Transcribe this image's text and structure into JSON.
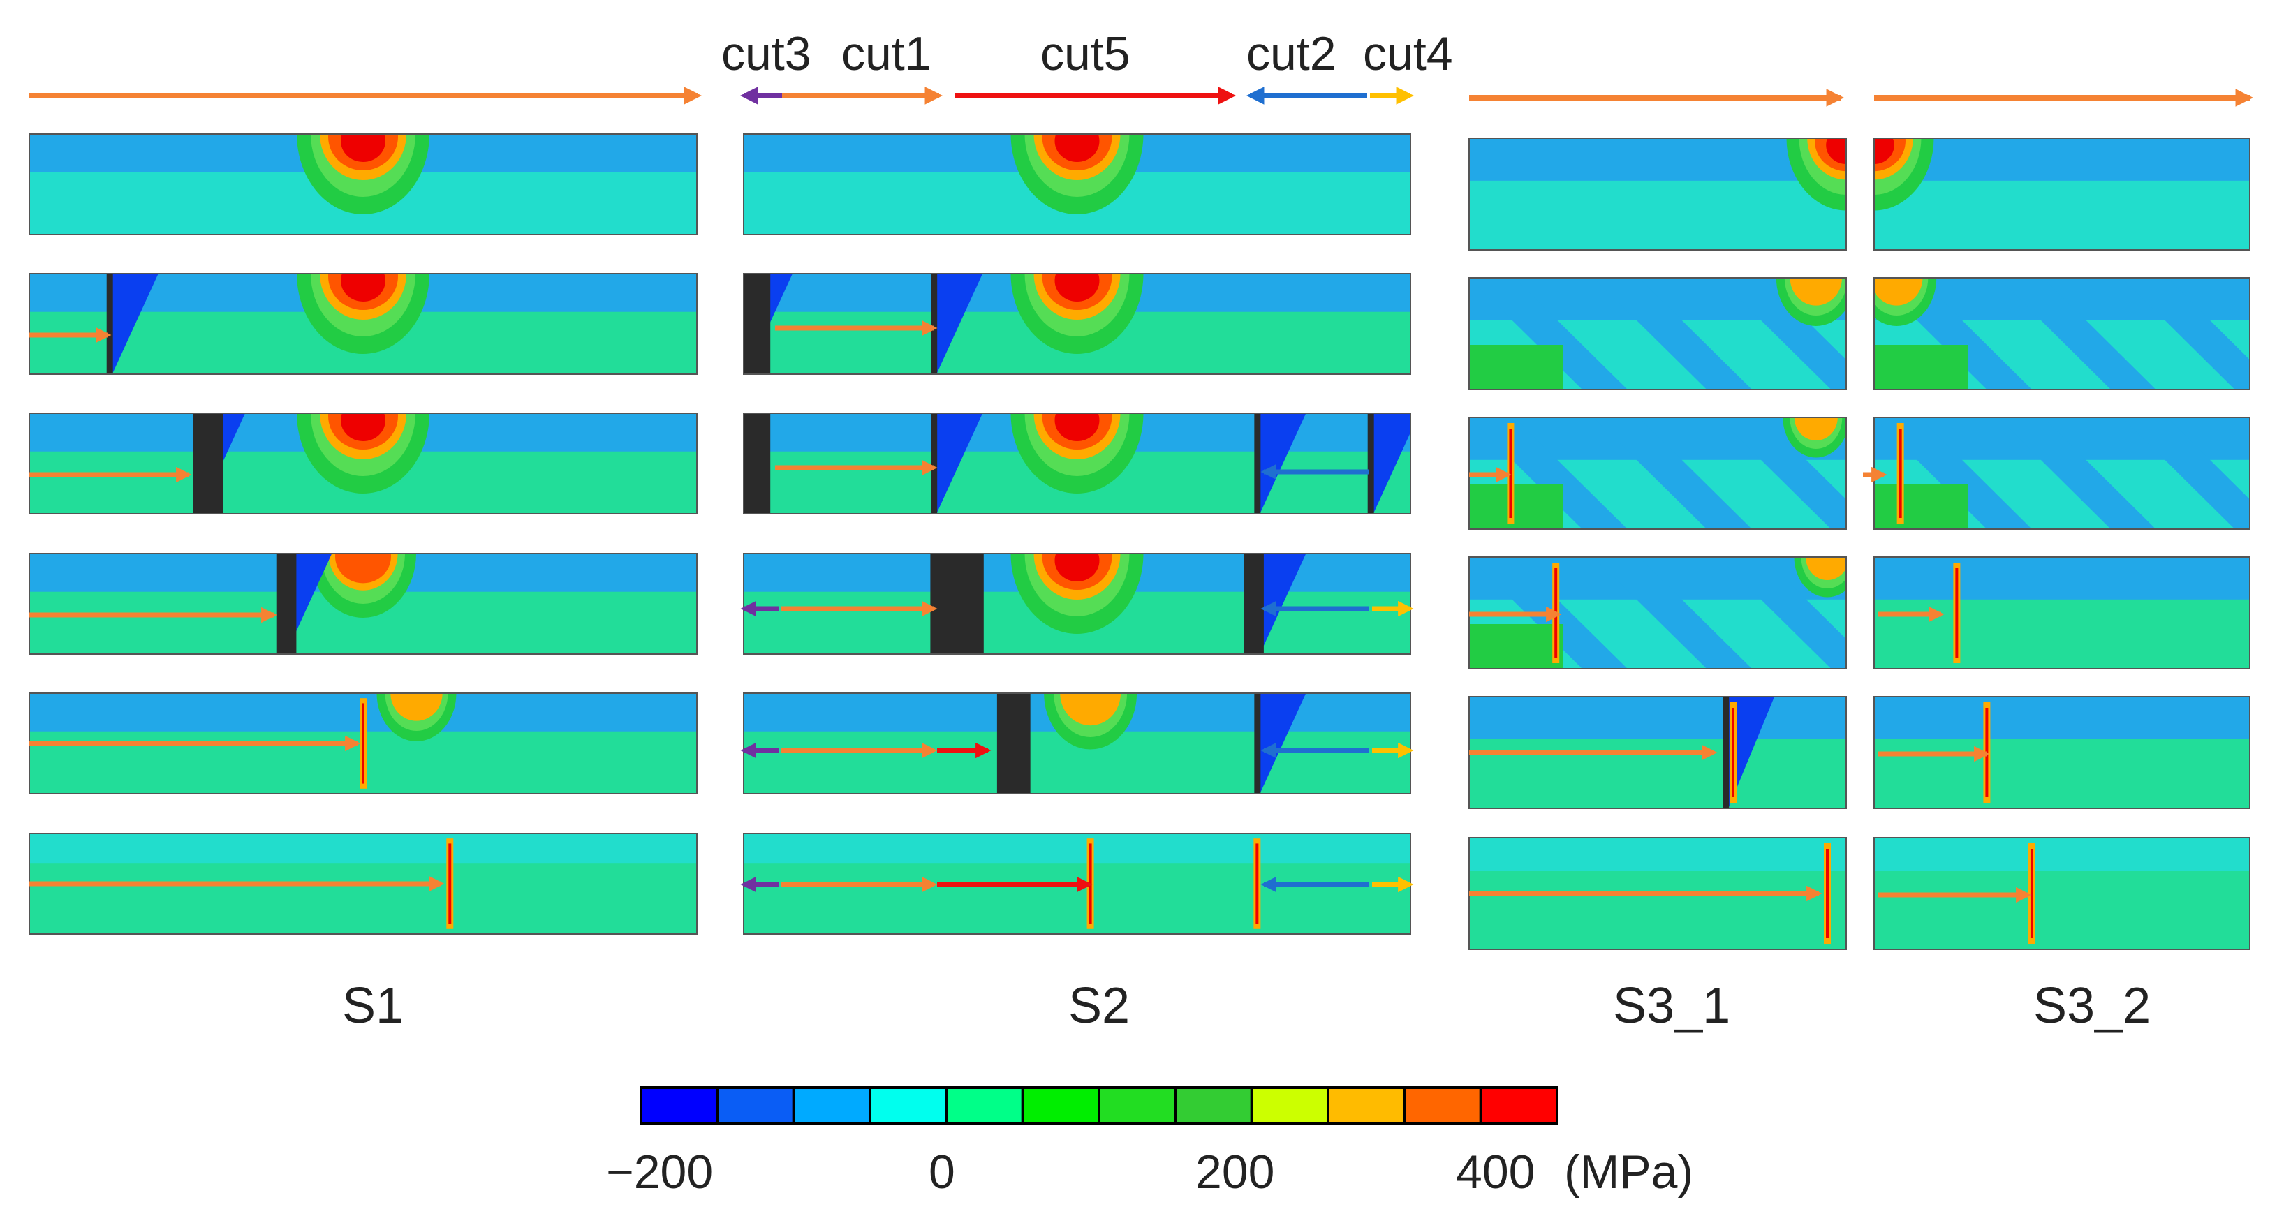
{
  "cut_labels": {
    "cut3": "cut3",
    "cut1": "cut1",
    "cut5": "cut5",
    "cut2": "cut2",
    "cut4": "cut4"
  },
  "sections": {
    "s1": "S1",
    "s2": "S2",
    "s3_1": "S3_1",
    "s3_2": "S3_2"
  },
  "colorbar": {
    "tick_labels": [
      "−200",
      "0",
      "200",
      "400"
    ],
    "unit": "(MPa)",
    "colors": [
      "#0000ff",
      "#0a5df5",
      "#00aaff",
      "#00ffee",
      "#00ff88",
      "#00ee00",
      "#22dd22",
      "#33cc33",
      "#ccff00",
      "#ffbb00",
      "#ff6600",
      "#ff0000"
    ]
  },
  "arrow_colors": {
    "orange": "#f58233",
    "red": "#ee1111",
    "blue": "#1f6fd0",
    "yellow": "#ffc000",
    "purple": "#7030a0"
  },
  "stress_colors": {
    "dark": "#2a2a2a",
    "deep_blue": "#0a3ff0",
    "blue": "#1f7fe6",
    "light_blue": "#22a8e8",
    "cyan": "#22ddcc",
    "green_cyan": "#22dd99",
    "green": "#22cc44",
    "light_green": "#55dd55",
    "yellow": "#ddee22",
    "orange": "#ffaa00",
    "dark_orange": "#ff5500",
    "red": "#ee0000"
  }
}
